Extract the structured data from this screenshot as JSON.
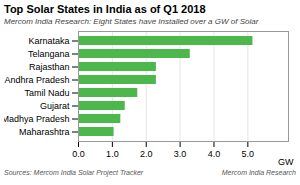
{
  "chart_data": {
    "type": "bar",
    "orientation": "horizontal",
    "title": "Top Solar States in India as of Q1 2018",
    "subtitle": "Mercom India Research: Eight States have Installed over a GW of Solar",
    "categories": [
      "Karnataka",
      "Telangana",
      "Rajasthan",
      "Andhra Pradesh",
      "Tamil Nadu",
      "Gujarat",
      "Madhya Pradesh",
      "Maharashtra"
    ],
    "values": [
      5.15,
      3.3,
      2.3,
      2.3,
      1.75,
      1.38,
      1.25,
      1.05
    ],
    "color": "#4cb84c",
    "xlabel": "GW",
    "xlim": [
      0,
      6.2
    ],
    "xticks": [
      0,
      1,
      2,
      3,
      4,
      5
    ],
    "grid": true,
    "annotations": [
      "Sources: Mercom India Solar Project Tracker",
      "Mercom India Research"
    ]
  }
}
